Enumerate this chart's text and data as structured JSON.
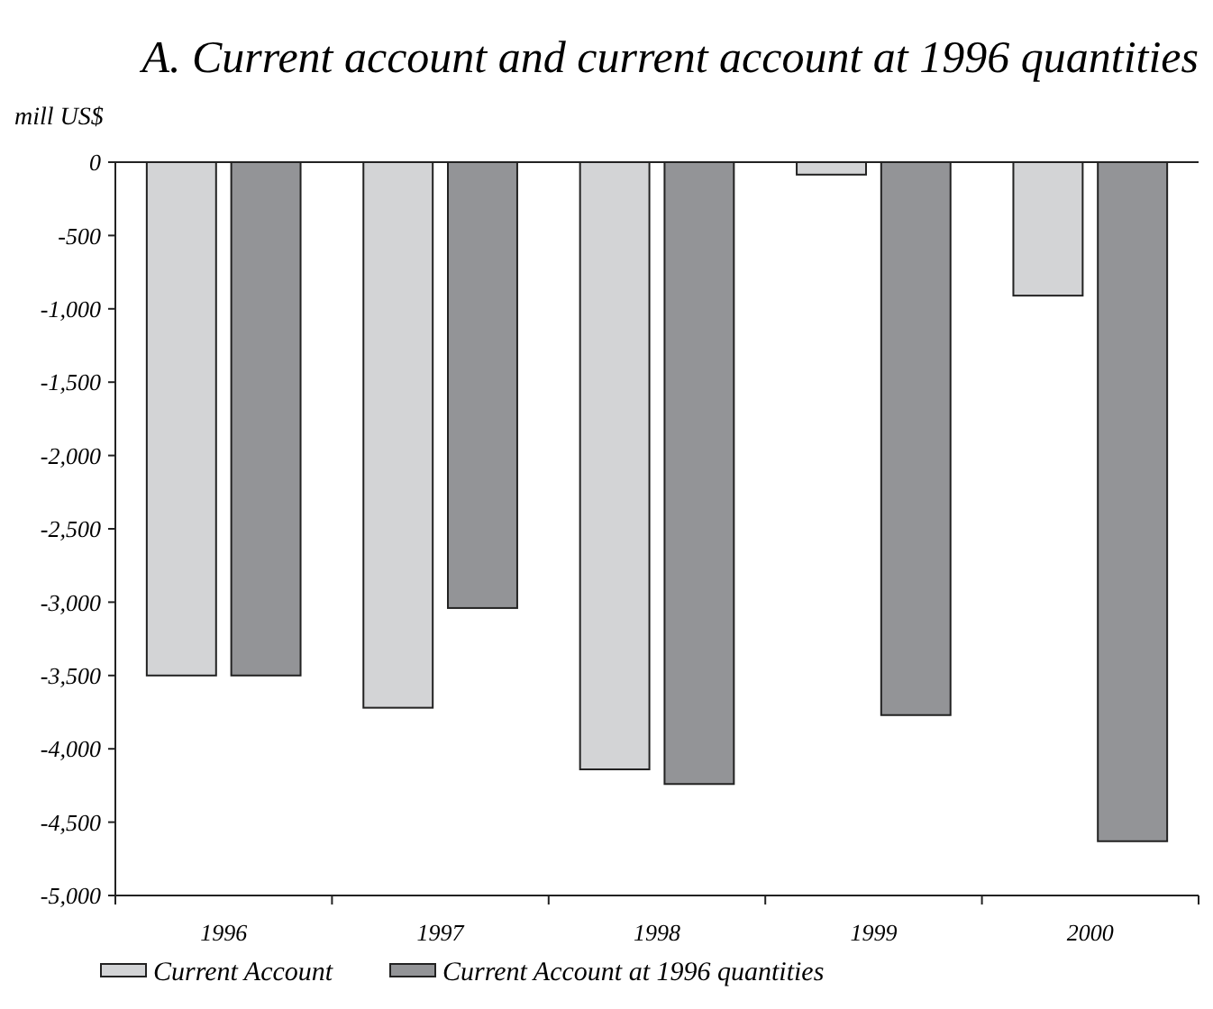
{
  "chart_data": {
    "type": "bar",
    "title": "A. Current account and current account at 1996 quantities",
    "ylabel": "mill US$",
    "categories": [
      "1996",
      "1997",
      "1998",
      "1999",
      "2000"
    ],
    "series": [
      {
        "name": "Current Account",
        "color": "#d3d4d6",
        "values": [
          -3500,
          -3720,
          -4140,
          -85,
          -910
        ]
      },
      {
        "name": "Current Account at 1996 quantities",
        "color": "#939497",
        "values": [
          -3500,
          -3040,
          -4240,
          -3770,
          -4630
        ]
      }
    ],
    "ylim": [
      -5000,
      0
    ],
    "yticks": [
      {
        "value": 0,
        "label": "0"
      },
      {
        "value": -500,
        "label": "-500"
      },
      {
        "value": -1000,
        "label": "-1,000"
      },
      {
        "value": -1500,
        "label": "-1,500"
      },
      {
        "value": -2000,
        "label": "-2,000"
      },
      {
        "value": -2500,
        "label": "-2,500"
      },
      {
        "value": -3000,
        "label": "-3,000"
      },
      {
        "value": -3500,
        "label": "-3,500"
      },
      {
        "value": -4000,
        "label": "-4,000"
      },
      {
        "value": -4500,
        "label": "-4,500"
      },
      {
        "value": -5000,
        "label": "-5,000"
      }
    ],
    "grid": false,
    "legend": "bottom"
  }
}
